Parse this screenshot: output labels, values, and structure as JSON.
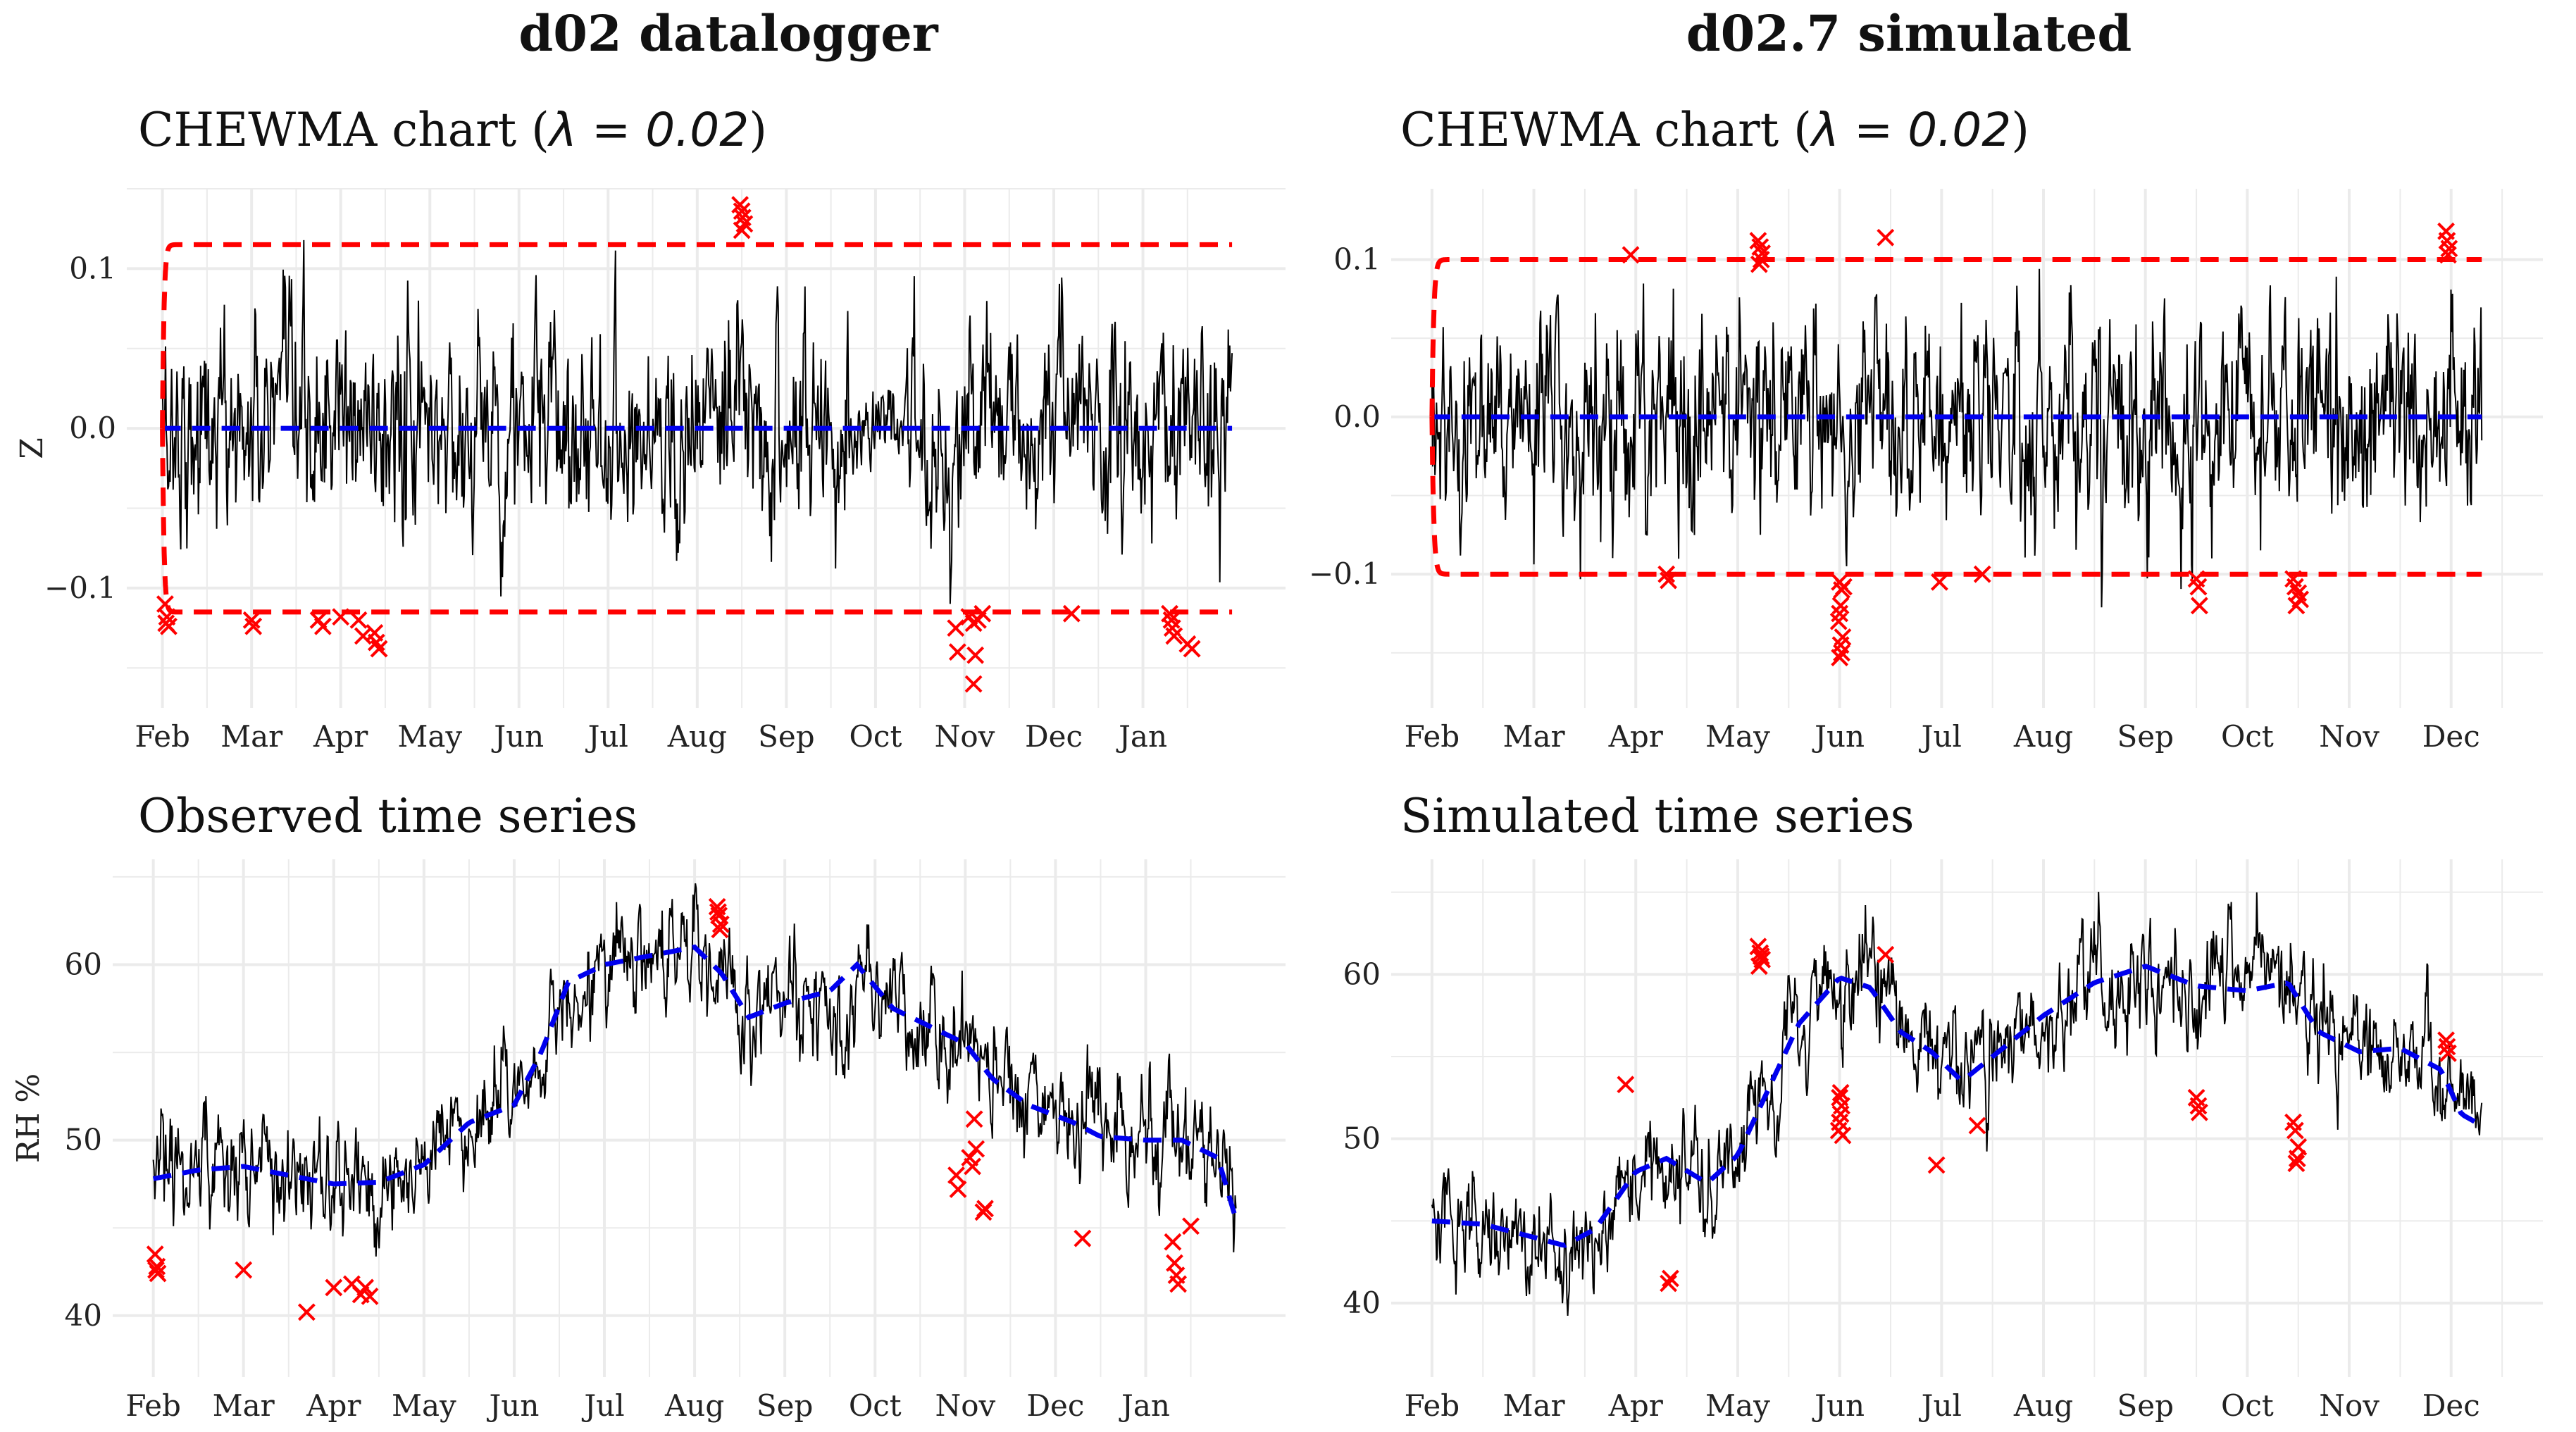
{
  "figure": {
    "left_title": "d02 datalogger",
    "right_title": "d02.7 simulated"
  },
  "colors": {
    "series": "#000000",
    "limit": "#ff0000",
    "center": "#0000ee",
    "marker": "#ff0000",
    "grid": "#ebebeb"
  },
  "chart_data": [
    {
      "id": "chewma-observed",
      "type": "line",
      "title": "CHEWMA chart (λ = 0.02)",
      "title_plain": "CHEWMA chart (",
      "title_lambda": "λ = 0.02",
      "xlabel": "",
      "ylabel": "Z",
      "x_unit": "month",
      "xlim": [
        -0.4,
        12.6
      ],
      "ylim": [
        -0.175,
        0.15
      ],
      "x_ticks": [
        0,
        1,
        2,
        3,
        4,
        5,
        6,
        7,
        8,
        9,
        10,
        11
      ],
      "x_tick_labels": [
        "Feb",
        "Mar",
        "Apr",
        "May",
        "Jun",
        "Jul",
        "Aug",
        "Sep",
        "Oct",
        "Nov",
        "Dec",
        "Jan"
      ],
      "y_ticks": [
        -0.1,
        0.0,
        0.1
      ],
      "y_tick_labels": [
        "−0.1",
        "0.0",
        "0.1"
      ],
      "series_range": [
        0,
        12.0
      ],
      "center_line": 0.0,
      "ucl": 0.115,
      "lcl": -0.115,
      "limit_startup": 0.05,
      "out_of_control_points": [
        [
          0.03,
          -0.11
        ],
        [
          0.05,
          -0.118
        ],
        [
          0.07,
          -0.124
        ],
        [
          0.04,
          -0.122
        ],
        [
          1.0,
          -0.12
        ],
        [
          1.02,
          -0.124
        ],
        [
          1.75,
          -0.12
        ],
        [
          1.8,
          -0.124
        ],
        [
          2.0,
          -0.118
        ],
        [
          2.2,
          -0.12
        ],
        [
          2.25,
          -0.13
        ],
        [
          2.38,
          -0.128
        ],
        [
          2.4,
          -0.134
        ],
        [
          2.43,
          -0.138
        ],
        [
          6.48,
          0.14
        ],
        [
          6.5,
          0.136
        ],
        [
          6.51,
          0.132
        ],
        [
          6.53,
          0.128
        ],
        [
          6.5,
          0.124
        ],
        [
          8.9,
          -0.125
        ],
        [
          8.92,
          -0.14
        ],
        [
          9.05,
          -0.118
        ],
        [
          9.1,
          -0.122
        ],
        [
          9.15,
          -0.12
        ],
        [
          9.12,
          -0.142
        ],
        [
          9.1,
          -0.16
        ],
        [
          9.2,
          -0.116
        ],
        [
          10.2,
          -0.116
        ],
        [
          11.3,
          -0.116
        ],
        [
          11.32,
          -0.12
        ],
        [
          11.33,
          -0.125
        ],
        [
          11.35,
          -0.13
        ],
        [
          11.5,
          -0.135
        ],
        [
          11.55,
          -0.138
        ]
      ]
    },
    {
      "id": "chewma-simulated",
      "type": "line",
      "title": "CHEWMA chart (λ = 0.02)",
      "title_plain": "CHEWMA chart (",
      "title_lambda": "λ = 0.02",
      "xlabel": "",
      "ylabel": "",
      "x_unit": "month",
      "xlim": [
        -0.4,
        10.9
      ],
      "ylim": [
        -0.185,
        0.145
      ],
      "x_ticks": [
        0,
        1,
        2,
        3,
        4,
        5,
        6,
        7,
        8,
        9,
        10
      ],
      "x_tick_labels": [
        "Feb",
        "Mar",
        "Apr",
        "May",
        "Jun",
        "Jul",
        "Aug",
        "Sep",
        "Oct",
        "Nov",
        "Dec"
      ],
      "y_ticks": [
        -0.1,
        0.0,
        0.1
      ],
      "y_tick_labels": [
        "−0.1",
        "0.0",
        "0.1"
      ],
      "series_range": [
        0,
        10.3
      ],
      "center_line": 0.0,
      "ucl": 0.1,
      "lcl": -0.1,
      "limit_startup": 0.05,
      "out_of_control_points": [
        [
          1.95,
          0.103
        ],
        [
          2.3,
          -0.1
        ],
        [
          2.32,
          -0.104
        ],
        [
          3.2,
          0.112
        ],
        [
          3.22,
          0.108
        ],
        [
          3.24,
          0.104
        ],
        [
          3.23,
          0.1
        ],
        [
          3.21,
          0.097
        ],
        [
          4.0,
          -0.105
        ],
        [
          4.02,
          -0.11
        ],
        [
          4.01,
          -0.12
        ],
        [
          4.0,
          -0.125
        ],
        [
          3.99,
          -0.13
        ],
        [
          4.03,
          -0.14
        ],
        [
          4.01,
          -0.145
        ],
        [
          4.02,
          -0.15
        ],
        [
          4.0,
          -0.153
        ],
        [
          4.04,
          -0.108
        ],
        [
          4.45,
          0.114
        ],
        [
          4.98,
          -0.105
        ],
        [
          5.4,
          -0.1
        ],
        [
          7.5,
          -0.103
        ],
        [
          7.52,
          -0.108
        ],
        [
          7.53,
          -0.12
        ],
        [
          8.45,
          -0.103
        ],
        [
          8.47,
          -0.108
        ],
        [
          8.5,
          -0.112
        ],
        [
          8.52,
          -0.116
        ],
        [
          8.48,
          -0.12
        ],
        [
          9.95,
          0.118
        ],
        [
          9.96,
          0.112
        ],
        [
          9.98,
          0.107
        ],
        [
          9.97,
          0.103
        ]
      ]
    },
    {
      "id": "observed-series",
      "type": "line",
      "title": "Observed time series",
      "xlabel": "",
      "ylabel": "RH %",
      "x_unit": "month",
      "xlim": [
        -0.45,
        12.55
      ],
      "ylim": [
        36.5,
        66.0
      ],
      "x_ticks": [
        0,
        1,
        2,
        3,
        4,
        5,
        6,
        7,
        8,
        9,
        10,
        11
      ],
      "x_tick_labels": [
        "Feb",
        "Mar",
        "Apr",
        "May",
        "Jun",
        "Jul",
        "Aug",
        "Sep",
        "Oct",
        "Nov",
        "Dec",
        "Jan"
      ],
      "y_ticks": [
        40,
        50,
        60
      ],
      "y_tick_labels": [
        "40",
        "50",
        "60"
      ],
      "series_range": [
        0,
        12.0
      ],
      "trend": [
        [
          0,
          47.8
        ],
        [
          0.5,
          48.3
        ],
        [
          1,
          48.5
        ],
        [
          1.5,
          48.0
        ],
        [
          2,
          47.5
        ],
        [
          2.5,
          47.6
        ],
        [
          3,
          48.6
        ],
        [
          3.5,
          51.0
        ],
        [
          4,
          52.0
        ],
        [
          4.3,
          55.0
        ],
        [
          4.6,
          59.0
        ],
        [
          5,
          60.0
        ],
        [
          5.5,
          60.5
        ],
        [
          6,
          61.0
        ],
        [
          6.3,
          59.5
        ],
        [
          6.6,
          57.0
        ],
        [
          7,
          57.8
        ],
        [
          7.5,
          58.5
        ],
        [
          7.8,
          60.0
        ],
        [
          8.2,
          57.5
        ],
        [
          8.6,
          56.5
        ],
        [
          9,
          55.5
        ],
        [
          9.3,
          53.5
        ],
        [
          9.7,
          52.0
        ],
        [
          10.2,
          51.0
        ],
        [
          10.5,
          50.2
        ],
        [
          11,
          50.0
        ],
        [
          11.4,
          50.0
        ],
        [
          11.8,
          49.0
        ],
        [
          12.0,
          45.5
        ]
      ],
      "out_of_control_points": [
        [
          0.02,
          43.5
        ],
        [
          0.04,
          42.8
        ],
        [
          0.05,
          42.4
        ],
        [
          0.03,
          42.6
        ],
        [
          1.0,
          42.6
        ],
        [
          1.7,
          40.2
        ],
        [
          2.0,
          41.6
        ],
        [
          2.2,
          41.8
        ],
        [
          2.3,
          41.2
        ],
        [
          2.35,
          41.6
        ],
        [
          2.4,
          41.1
        ],
        [
          6.25,
          63.3
        ],
        [
          6.27,
          62.8
        ],
        [
          6.29,
          62.3
        ],
        [
          6.28,
          62.0
        ],
        [
          6.26,
          63.0
        ],
        [
          8.9,
          48.0
        ],
        [
          8.92,
          47.2
        ],
        [
          9.05,
          49.0
        ],
        [
          9.08,
          48.5
        ],
        [
          9.1,
          51.2
        ],
        [
          9.12,
          49.5
        ],
        [
          9.2,
          45.9
        ],
        [
          9.22,
          46.1
        ],
        [
          10.3,
          44.4
        ],
        [
          11.3,
          44.2
        ],
        [
          11.32,
          43.0
        ],
        [
          11.34,
          42.3
        ],
        [
          11.36,
          41.8
        ],
        [
          11.5,
          45.1
        ]
      ]
    },
    {
      "id": "simulated-series",
      "type": "line",
      "title": "Simulated time series",
      "xlabel": "",
      "ylabel": "",
      "x_unit": "month",
      "xlim": [
        -0.4,
        10.9
      ],
      "ylim": [
        35.5,
        67.0
      ],
      "x_ticks": [
        0,
        1,
        2,
        3,
        4,
        5,
        6,
        7,
        8,
        9,
        10
      ],
      "x_tick_labels": [
        "Feb",
        "Mar",
        "Apr",
        "May",
        "Jun",
        "Jul",
        "Aug",
        "Sep",
        "Oct",
        "Nov",
        "Dec"
      ],
      "y_ticks": [
        40,
        50,
        60
      ],
      "y_tick_labels": [
        "40",
        "50",
        "60"
      ],
      "series_range": [
        0,
        10.3
      ],
      "trend": [
        [
          0,
          45.0
        ],
        [
          0.5,
          44.8
        ],
        [
          1,
          44.0
        ],
        [
          1.3,
          43.5
        ],
        [
          1.6,
          44.5
        ],
        [
          2,
          48.0
        ],
        [
          2.3,
          48.8
        ],
        [
          2.7,
          47.3
        ],
        [
          3,
          49.0
        ],
        [
          3.3,
          53.0
        ],
        [
          3.6,
          57.0
        ],
        [
          4,
          59.8
        ],
        [
          4.3,
          59.2
        ],
        [
          4.6,
          56.5
        ],
        [
          4.9,
          55.3
        ],
        [
          5.2,
          53.5
        ],
        [
          5.6,
          55.5
        ],
        [
          6,
          57.5
        ],
        [
          6.5,
          59.5
        ],
        [
          7,
          60.5
        ],
        [
          7.5,
          59.3
        ],
        [
          8,
          59.0
        ],
        [
          8.4,
          59.5
        ],
        [
          8.7,
          56.5
        ],
        [
          9.1,
          55.3
        ],
        [
          9.5,
          55.5
        ],
        [
          9.9,
          54.2
        ],
        [
          10.1,
          51.5
        ],
        [
          10.3,
          50.8
        ]
      ],
      "out_of_control_points": [
        [
          1.9,
          53.3
        ],
        [
          2.32,
          41.2
        ],
        [
          2.34,
          41.5
        ],
        [
          3.2,
          61.7
        ],
        [
          3.22,
          61.3
        ],
        [
          3.24,
          60.9
        ],
        [
          3.23,
          61.1
        ],
        [
          3.21,
          60.5
        ],
        [
          4.0,
          52.5
        ],
        [
          4.02,
          52.0
        ],
        [
          4.01,
          51.5
        ],
        [
          4.0,
          51.0
        ],
        [
          3.99,
          50.5
        ],
        [
          4.03,
          50.2
        ],
        [
          4.01,
          52.8
        ],
        [
          4.45,
          61.2
        ],
        [
          4.95,
          48.4
        ],
        [
          5.35,
          50.8
        ],
        [
          7.5,
          52.5
        ],
        [
          7.52,
          52.0
        ],
        [
          7.53,
          51.6
        ],
        [
          8.45,
          51.0
        ],
        [
          8.47,
          50.5
        ],
        [
          8.5,
          49.5
        ],
        [
          8.49,
          48.8
        ],
        [
          8.48,
          48.5
        ],
        [
          9.95,
          56.0
        ],
        [
          9.96,
          55.6
        ],
        [
          9.97,
          55.2
        ]
      ]
    }
  ]
}
